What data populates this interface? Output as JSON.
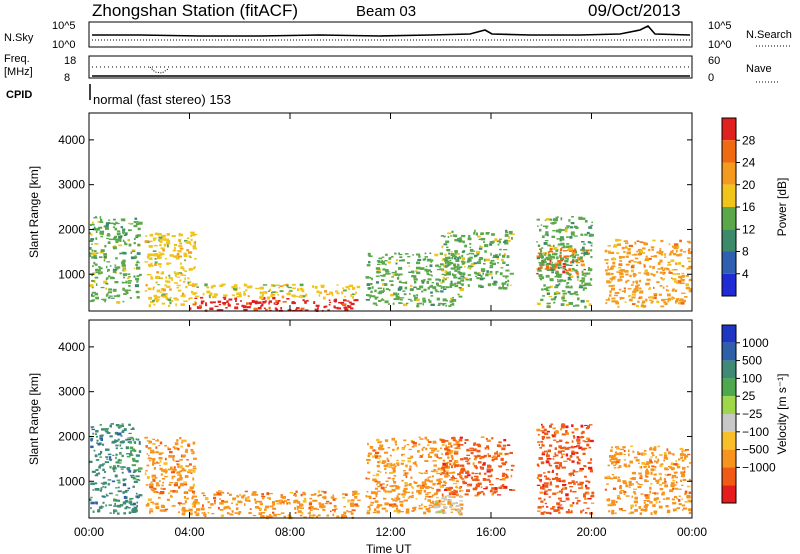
{
  "header": {
    "station": "Zhongshan Station (fitACF)",
    "beam": "Beam 03",
    "date": "09/Oct/2013",
    "cpid": "CPID",
    "mode": "normal (fast stereo) 153"
  },
  "strips": {
    "nsky": {
      "label": "N.Sky",
      "tick_hi": "10^5",
      "tick_lo": "10^0",
      "right_label": "N.Search",
      "right_hi": "10^5",
      "right_lo": "10^0"
    },
    "freq": {
      "label_a": "Freq.",
      "label_b": "[MHz]",
      "tick_hi": "18",
      "tick_lo": "8",
      "right_label": "Nave",
      "right_hi": "60",
      "right_lo": "0"
    }
  },
  "colors": {
    "power": [
      "#1f2cd6",
      "#2f5fb0",
      "#3d8a6b",
      "#5aa84a",
      "#f0c419",
      "#f39a1f",
      "#f06a14",
      "#e01f1f"
    ],
    "velocity": [
      "#e61c1c",
      "#f05a16",
      "#f7941d",
      "#f9bf2a",
      "#c8c8c8",
      "#9ed84a",
      "#4ea84e",
      "#3e8a74",
      "#2f5fa8",
      "#1f36c2"
    ]
  },
  "chart_data": [
    {
      "type": "heatmap",
      "name": "power",
      "xlabel": "",
      "ylabel": "Slant Range [km]",
      "x_ticks": [
        "00:00",
        "04:00",
        "08:00",
        "12:00",
        "16:00",
        "20:00",
        "00:00"
      ],
      "y_ticks": [
        "1000",
        "2000",
        "3000",
        "4000"
      ],
      "ylim": [
        180,
        4600
      ],
      "colorbar": {
        "label": "Power [dB]",
        "ticks": [
          "4",
          "8",
          "12",
          "16",
          "20",
          "24",
          "28"
        ]
      },
      "regions": [
        {
          "t0": 0.0,
          "t1": 2.0,
          "r0": 400,
          "r1": 2300,
          "level": 3
        },
        {
          "t0": 2.2,
          "t1": 4.2,
          "r0": 300,
          "r1": 2000,
          "level": 4
        },
        {
          "t0": 4.0,
          "t1": 10.7,
          "r0": 200,
          "r1": 500,
          "level": 7
        },
        {
          "t0": 4.0,
          "t1": 10.7,
          "r0": 500,
          "r1": 800,
          "level": 4
        },
        {
          "t0": 11.0,
          "t1": 14.8,
          "r0": 300,
          "r1": 1500,
          "level": 3
        },
        {
          "t0": 14.0,
          "t1": 16.8,
          "r0": 700,
          "r1": 2000,
          "level": 3
        },
        {
          "t0": 17.8,
          "t1": 19.8,
          "r0": 1000,
          "r1": 1600,
          "level": 6
        },
        {
          "t0": 17.8,
          "t1": 20.0,
          "r0": 300,
          "r1": 2300,
          "level": 3
        },
        {
          "t0": 20.5,
          "t1": 23.9,
          "r0": 300,
          "r1": 1800,
          "level": 5
        }
      ]
    },
    {
      "type": "heatmap",
      "name": "velocity",
      "xlabel": "Time UT",
      "ylabel": "Slant Range [km]",
      "x_ticks": [
        "00:00",
        "04:00",
        "08:00",
        "12:00",
        "16:00",
        "20:00",
        "00:00"
      ],
      "y_ticks": [
        "1000",
        "2000",
        "3000",
        "4000"
      ],
      "ylim": [
        180,
        4600
      ],
      "colorbar": {
        "label": "Velocity [m s⁻¹]",
        "ticks": [
          "1000",
          "500",
          "100",
          "25",
          "−25",
          "−100",
          "−500",
          "−1000"
        ]
      },
      "regions": [
        {
          "t0": 0.0,
          "t1": 2.0,
          "r0": 300,
          "r1": 2300,
          "level": 7
        },
        {
          "t0": 2.2,
          "t1": 4.2,
          "r0": 300,
          "r1": 2000,
          "level": 2
        },
        {
          "t0": 4.0,
          "t1": 10.7,
          "r0": 200,
          "r1": 800,
          "level": 2
        },
        {
          "t0": 11.0,
          "t1": 14.8,
          "r0": 300,
          "r1": 2000,
          "level": 2
        },
        {
          "t0": 13.6,
          "t1": 14.8,
          "r0": 300,
          "r1": 700,
          "level": 4
        },
        {
          "t0": 14.0,
          "t1": 16.8,
          "r0": 700,
          "r1": 2000,
          "level": 1
        },
        {
          "t0": 17.8,
          "t1": 20.0,
          "r0": 300,
          "r1": 2300,
          "level": 1
        },
        {
          "t0": 20.5,
          "t1": 23.9,
          "r0": 300,
          "r1": 1800,
          "level": 2
        }
      ]
    }
  ]
}
